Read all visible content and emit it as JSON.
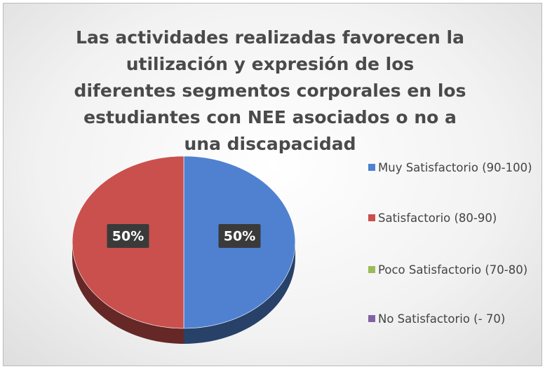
{
  "chart_data": {
    "type": "pie",
    "title": "Las actividades realizadas favorecen la utilización y expresión de los diferentes segmentos corporales en los estudiantes con NEE asociados o no a una discapacidad",
    "categories": [
      "Muy Satisfactorio (90-100)",
      "Satisfactorio (80-90)",
      "Poco Satisfactorio (70-80)",
      "No Satisfactorio (- 70)"
    ],
    "values": [
      50,
      50,
      0,
      0
    ],
    "value_labels": [
      "50%",
      "50%",
      null,
      null
    ],
    "colors": [
      "#4f81d0",
      "#c9504d",
      "#9bbb59",
      "#8064a2"
    ],
    "legend": "right"
  }
}
